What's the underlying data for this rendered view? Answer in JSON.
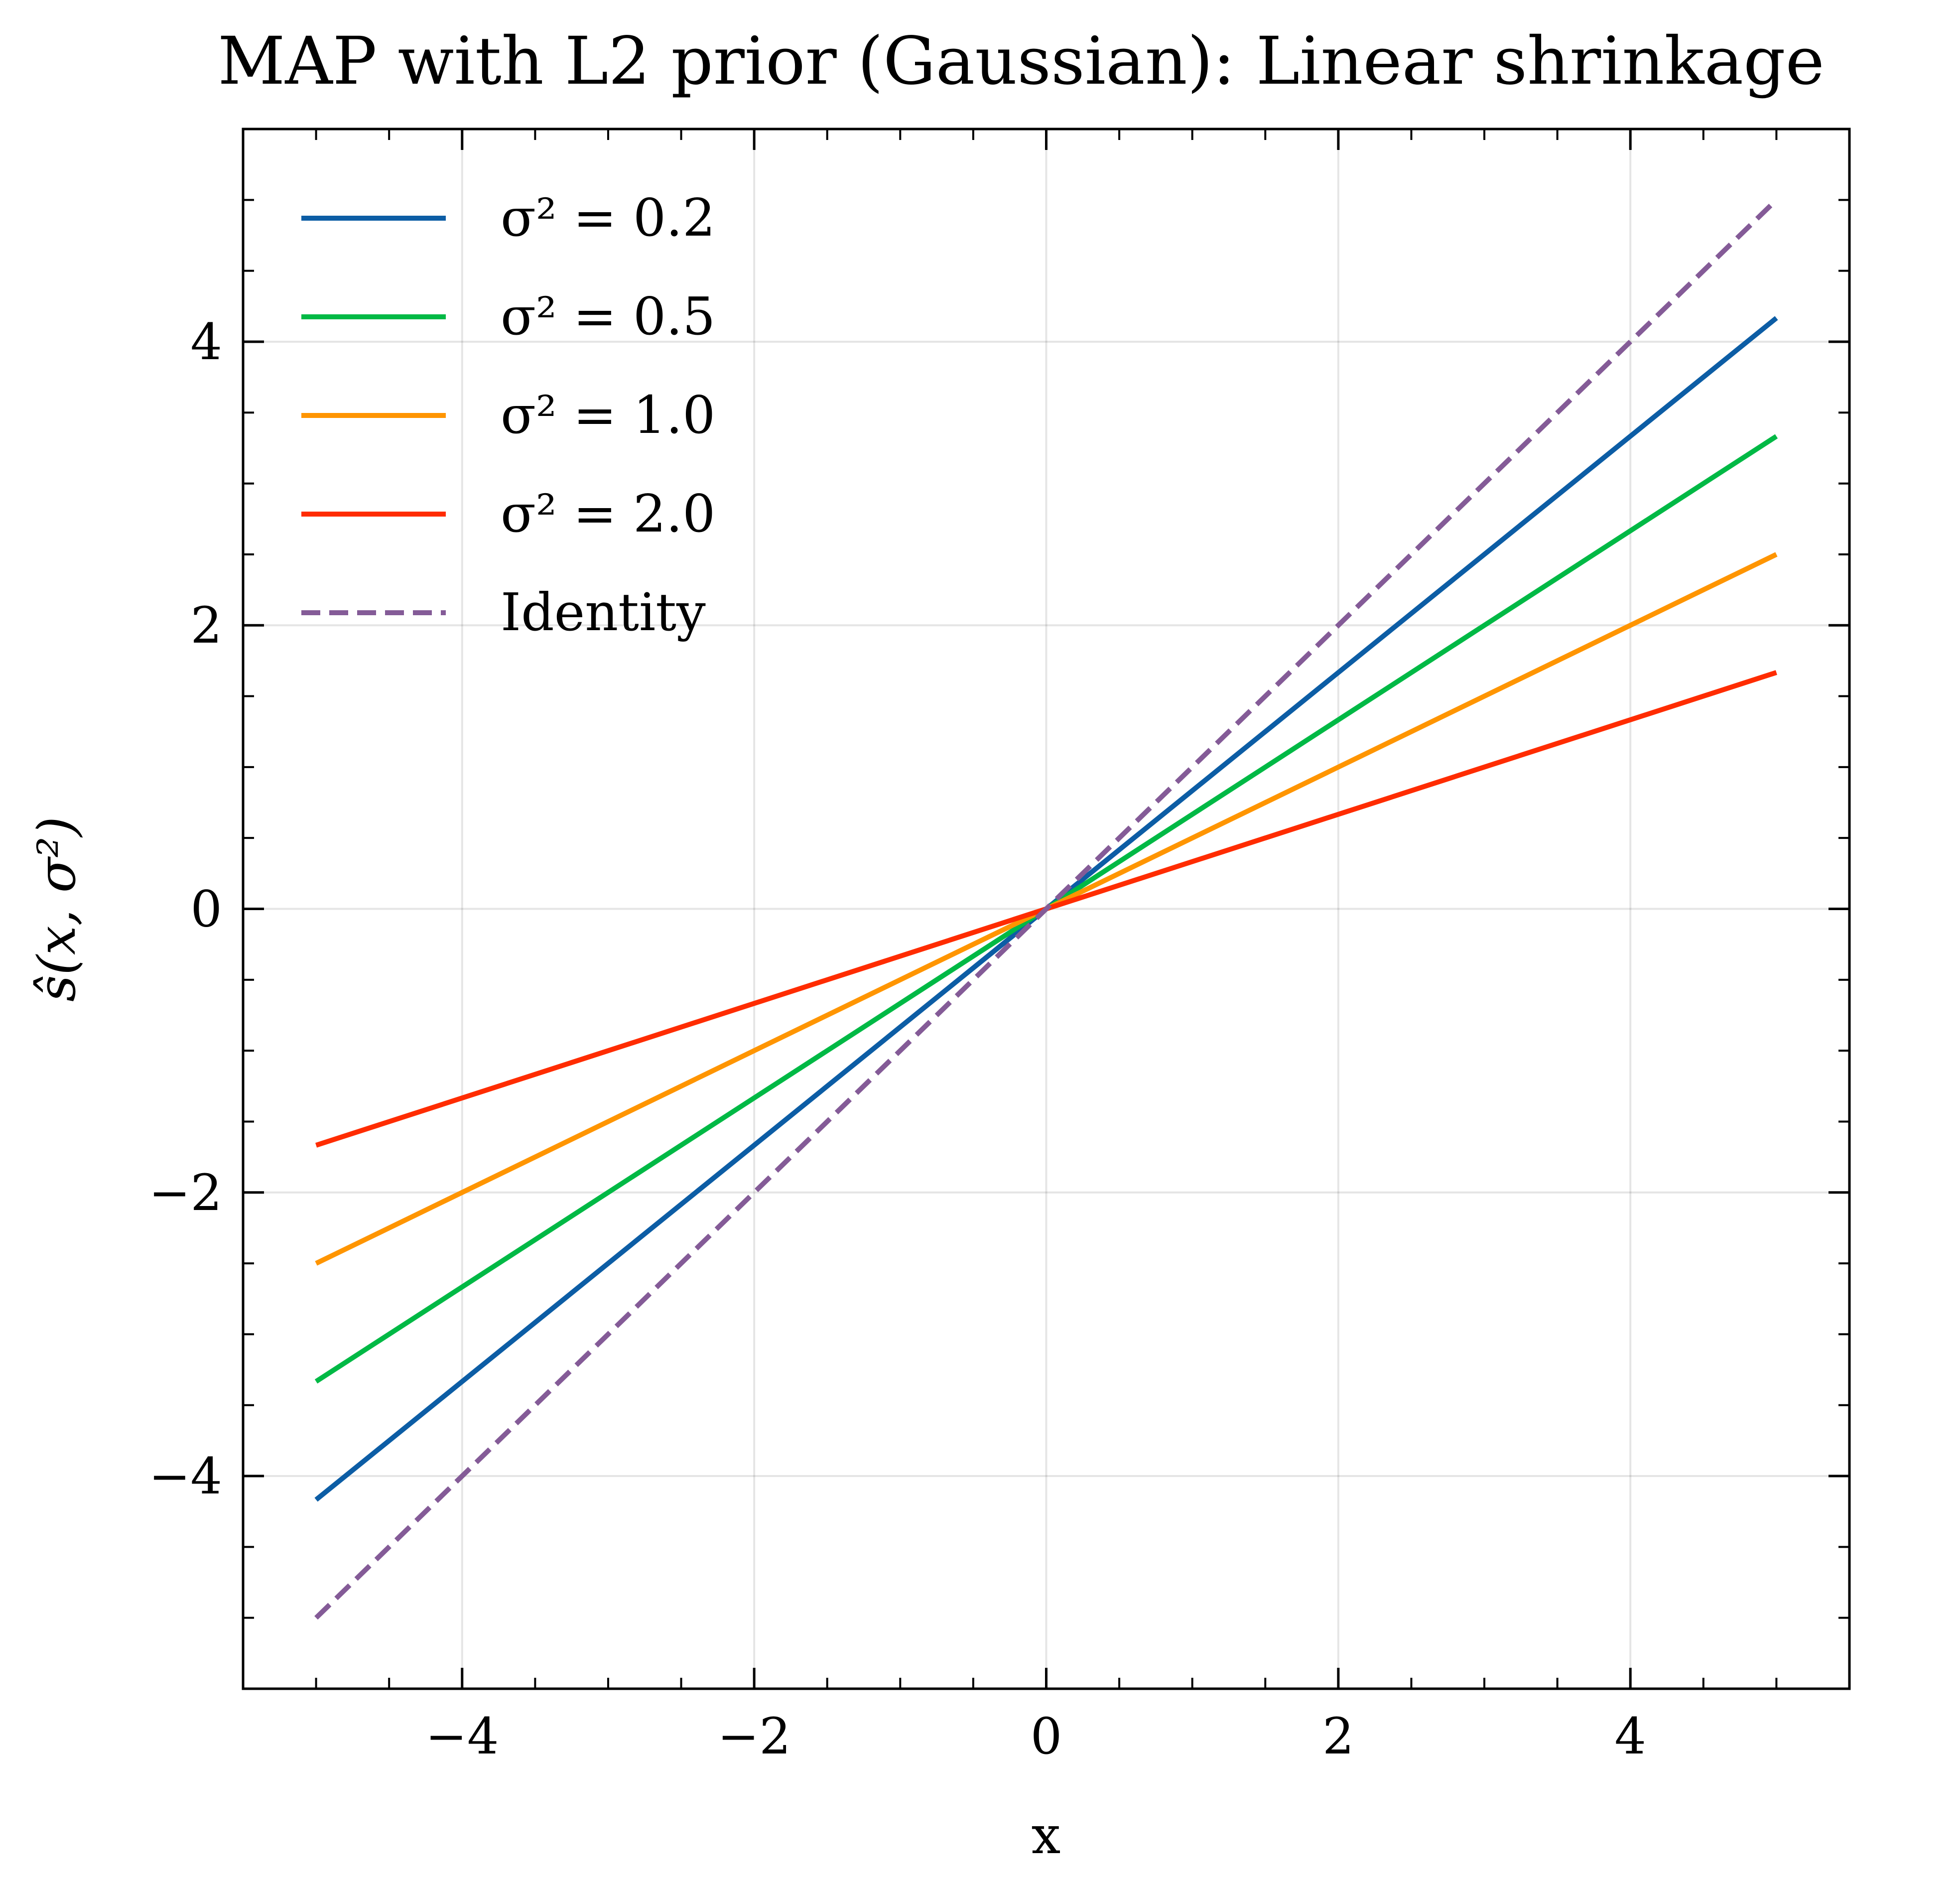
{
  "chart_data": {
    "type": "line",
    "title": "MAP with L2 prior (Gaussian): Linear shrinkage",
    "xlabel": "x",
    "ylabel": "ŝ(x, σ²)",
    "xlim": [
      -5.5,
      5.5
    ],
    "ylim": [
      -5.5,
      5.5
    ],
    "xticks": [
      -4,
      -2,
      0,
      2,
      4
    ],
    "yticks": [
      -4,
      -2,
      0,
      2,
      4
    ],
    "xtick_labels": [
      "−4",
      "−2",
      "0",
      "2",
      "4"
    ],
    "ytick_labels": [
      "−4",
      "−2",
      "0",
      "2",
      "4"
    ],
    "grid": true,
    "legend_position": "top-left",
    "series": [
      {
        "name": "σ² = 0.2",
        "color": "#0C5DA5",
        "dash": "solid",
        "x": [
          -5,
          5
        ],
        "y": [
          -4.167,
          4.167
        ]
      },
      {
        "name": "σ² = 0.5",
        "color": "#00B945",
        "dash": "solid",
        "x": [
          -5,
          5
        ],
        "y": [
          -3.333,
          3.333
        ]
      },
      {
        "name": "σ² = 1.0",
        "color": "#FF9500",
        "dash": "solid",
        "x": [
          -5,
          5
        ],
        "y": [
          -2.5,
          2.5
        ]
      },
      {
        "name": "σ² = 2.0",
        "color": "#FF2C00",
        "dash": "solid",
        "x": [
          -5,
          5
        ],
        "y": [
          -1.667,
          1.667
        ]
      },
      {
        "name": "Identity",
        "color": "#845B97",
        "dash": "dashed",
        "x": [
          -5,
          5
        ],
        "y": [
          -5,
          5
        ]
      }
    ]
  }
}
